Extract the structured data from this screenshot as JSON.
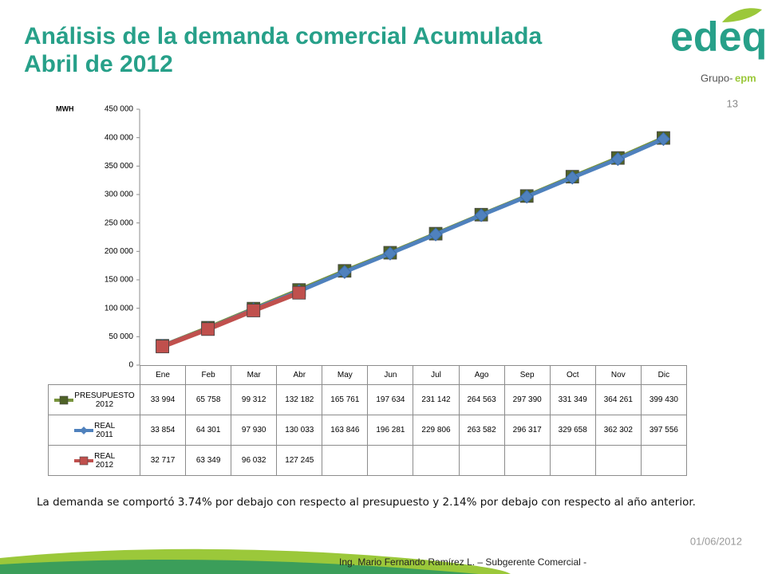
{
  "header": {
    "title_line1": "Análisis de la demanda comercial Acumulada",
    "title_line2": "Abril de 2012",
    "slide_number": "13",
    "logo_main": "edeq",
    "logo_group": "Grupo-",
    "logo_epm": "epm"
  },
  "chart_data": {
    "type": "line",
    "y_axis_label": "MWH",
    "categories": [
      "Ene",
      "Feb",
      "Mar",
      "Abr",
      "May",
      "Jun",
      "Jul",
      "Ago",
      "Sep",
      "Oct",
      "Nov",
      "Dic"
    ],
    "series": [
      {
        "name": "PRESUPUESTO 2012",
        "color": "#77933c",
        "marker": "square",
        "marker_color": "#4f6228",
        "values": [
          33994,
          65758,
          99312,
          132182,
          165761,
          197634,
          231142,
          264563,
          297390,
          331349,
          364261,
          399430
        ],
        "value_labels": [
          "33 994",
          "65 758",
          "99 312",
          "132 182",
          "165 761",
          "197 634",
          "231 142",
          "264 563",
          "297 390",
          "331 349",
          "364 261",
          "399 430"
        ]
      },
      {
        "name": "REAL 2011",
        "color": "#4f81bd",
        "marker": "diamond",
        "marker_color": "#4f81bd",
        "values": [
          33854,
          64301,
          97930,
          130033,
          163846,
          196281,
          229806,
          263582,
          296317,
          329658,
          362302,
          397556
        ],
        "value_labels": [
          "33 854",
          "64 301",
          "97 930",
          "130 033",
          "163 846",
          "196 281",
          "229 806",
          "263 582",
          "296 317",
          "329 658",
          "362 302",
          "397 556"
        ]
      },
      {
        "name": "REAL 2012",
        "color": "#c0504d",
        "marker": "square",
        "marker_color": "#c0504d",
        "values": [
          32717,
          63349,
          96032,
          127245,
          null,
          null,
          null,
          null,
          null,
          null,
          null,
          null
        ],
        "value_labels": [
          "32 717",
          "63 349",
          "96 032",
          "127 245",
          null,
          null,
          null,
          null,
          null,
          null,
          null,
          null
        ]
      }
    ],
    "ylim": [
      0,
      450000
    ],
    "yticks": [
      0,
      {
        "value": 50000,
        "label": "50 000"
      },
      {
        "value": 100000,
        "label": "100 000"
      },
      {
        "value": 150000,
        "label": "150 000"
      },
      {
        "value": 200000,
        "label": "200 000"
      },
      {
        "value": 250000,
        "label": "250 000"
      },
      {
        "value": 300000,
        "label": "300 000"
      },
      {
        "value": 350000,
        "label": "350 000"
      },
      {
        "value": 400000,
        "label": "400 000"
      },
      {
        "value": 450000,
        "label": "450 000"
      }
    ],
    "grid": false
  },
  "footer": {
    "note": "La demanda se comportó 3.74% por debajo con respecto al presupuesto y 2.14% por debajo con respecto al año anterior.",
    "date": "01/06/2012",
    "author": "Ing. Mario Fernando Ramírez L. – Subgerente Comercial -"
  }
}
